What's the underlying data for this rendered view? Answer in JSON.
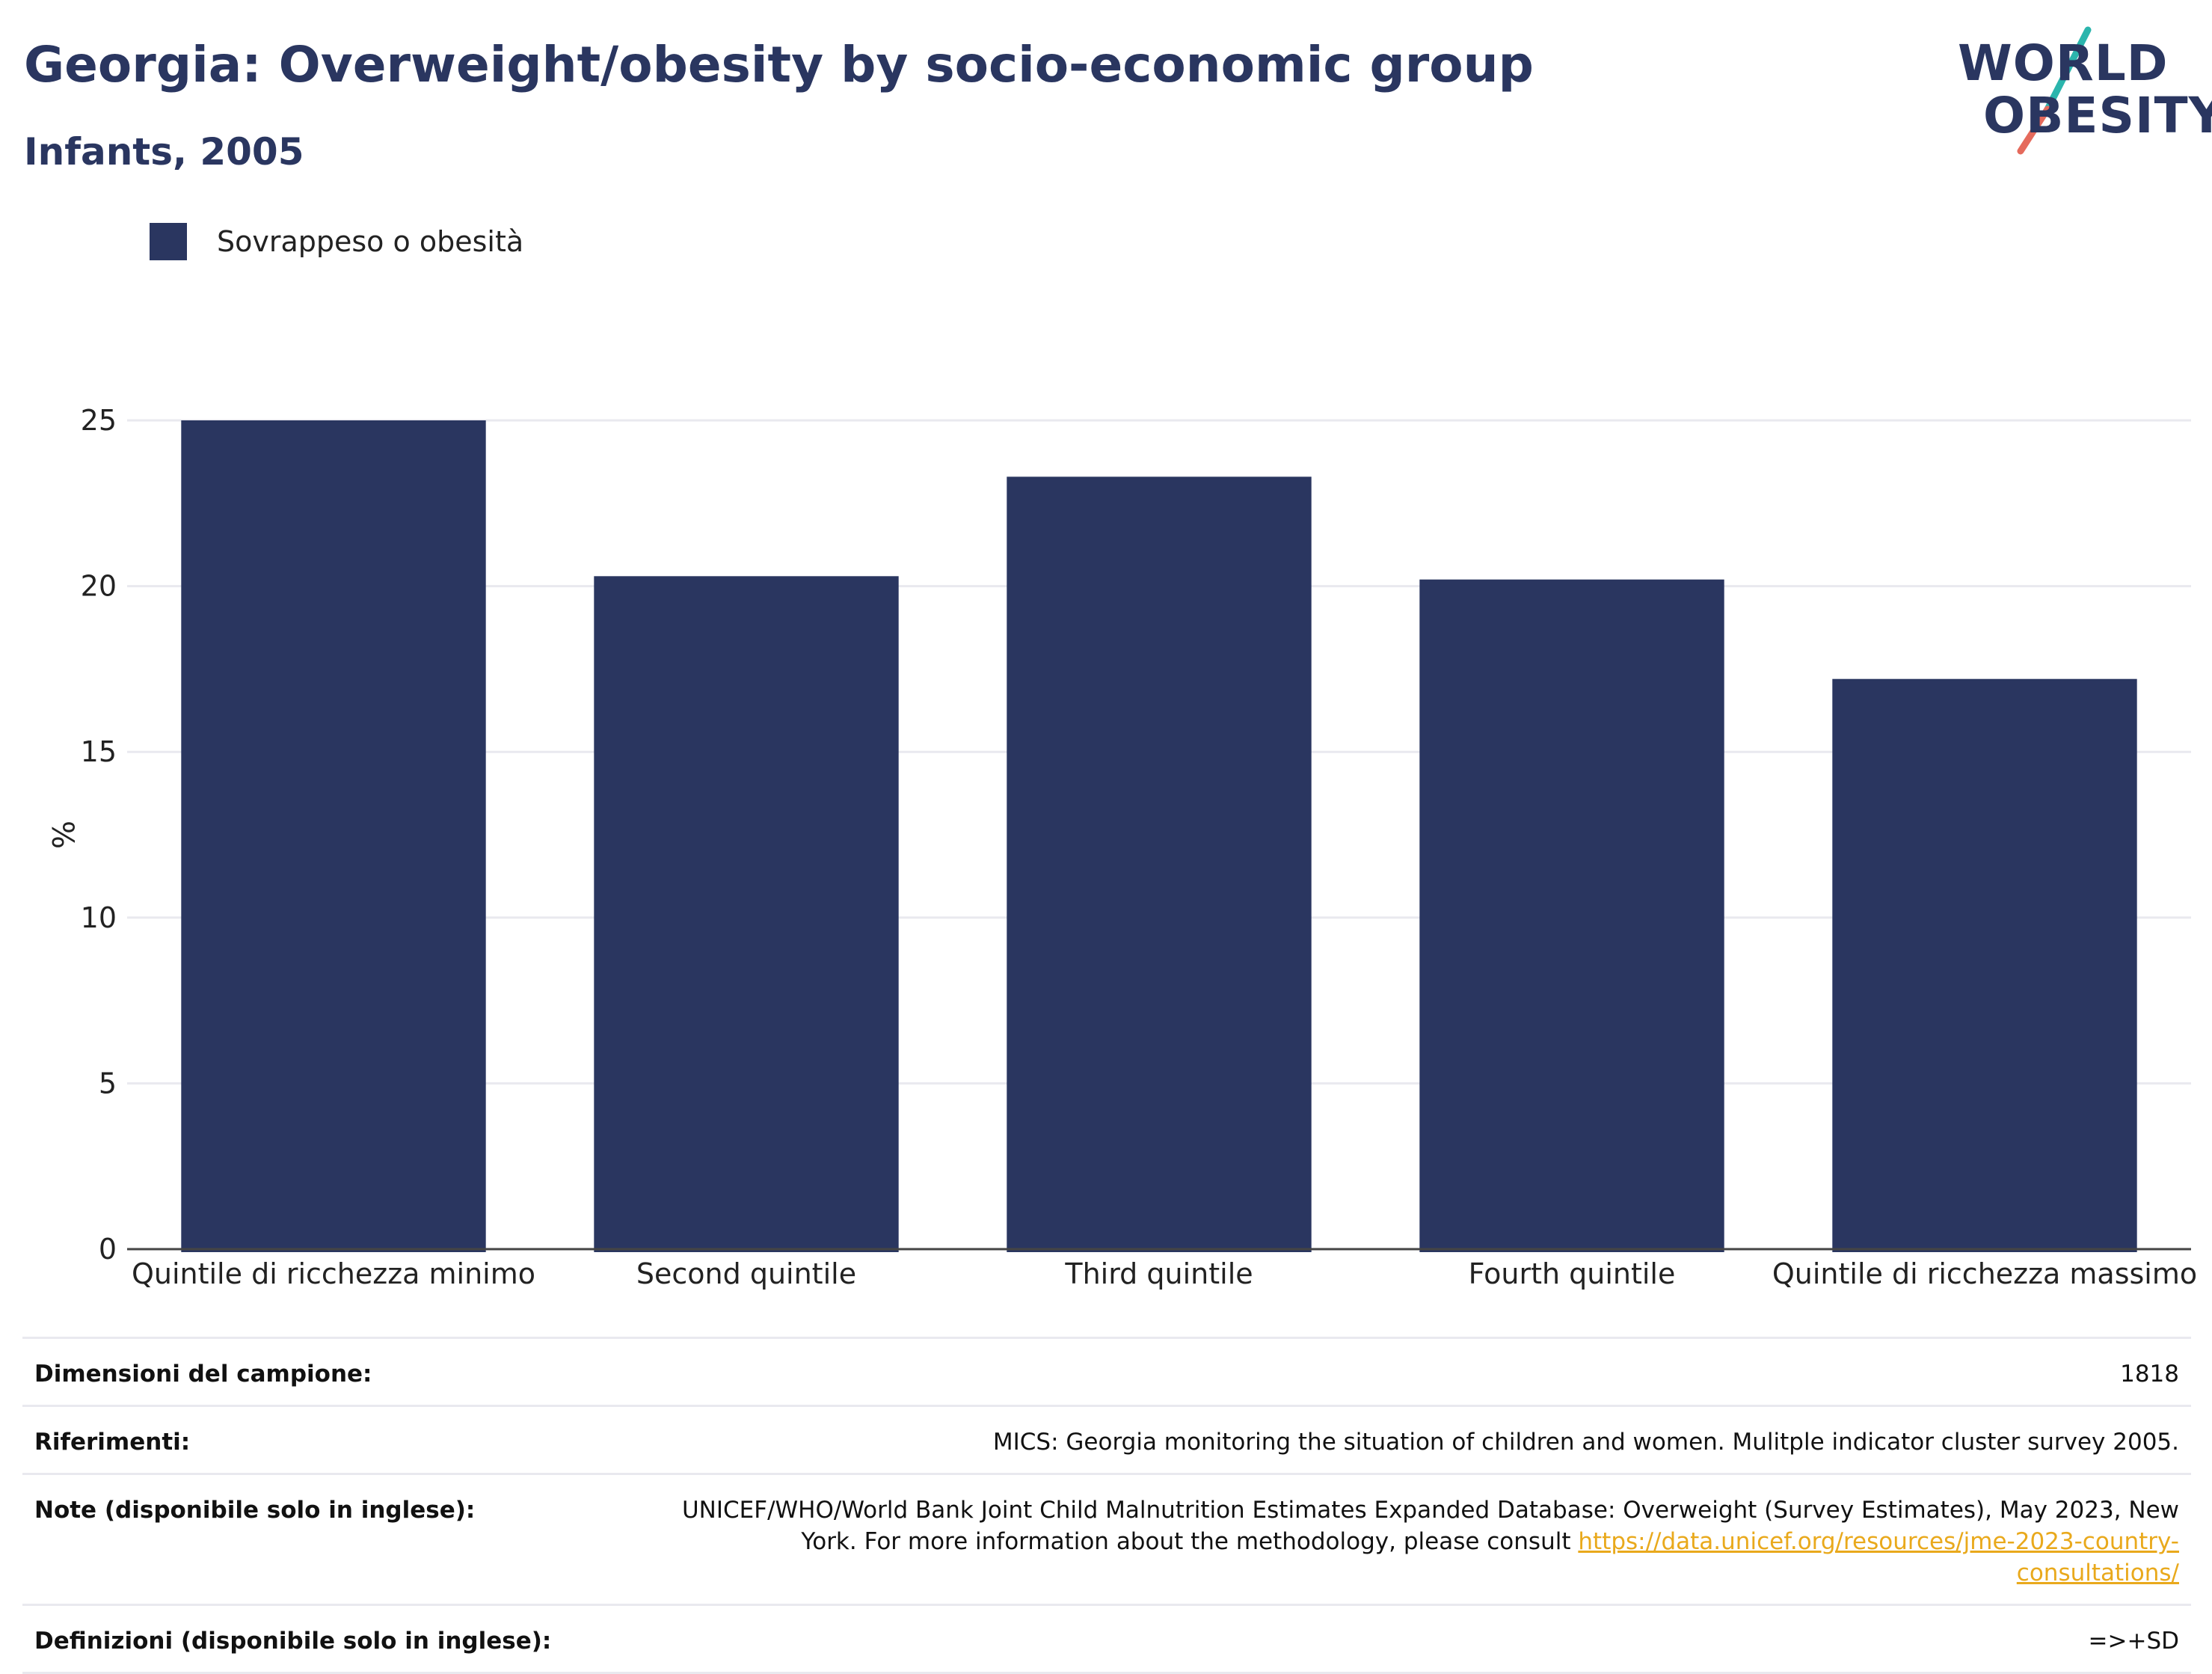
{
  "header": {
    "title": "Georgia: Overweight/obesity by socio-economic group",
    "subtitle": "Infants, 2005"
  },
  "logo": {
    "line1": "WORLD",
    "line2": "OBESITY",
    "accent_colors": [
      "#2bb5ad",
      "#e56a5c"
    ]
  },
  "colors": {
    "bar": "#2a3660",
    "gridline": "#e9e9ef",
    "axis": "#444444"
  },
  "chart_data": {
    "type": "bar",
    "categories": [
      "Quintile di ricchezza minimo",
      "Second quintile",
      "Third quintile",
      "Fourth quintile",
      "Quintile di ricchezza massimo"
    ],
    "series": [
      {
        "name": "Sovrappeso o obesità",
        "values": [
          25.0,
          20.3,
          23.3,
          20.2,
          17.2
        ]
      }
    ],
    "ylabel": "%",
    "xlabel": "",
    "ylim": [
      0,
      25
    ],
    "yticks": [
      0,
      5,
      10,
      15,
      20,
      25
    ],
    "grid": true,
    "legend_position": "top-left"
  },
  "info": {
    "rows": [
      {
        "label": "Dimensioni del campione:",
        "value": "1818"
      },
      {
        "label": "Riferimenti:",
        "value": "MICS: Georgia monitoring the situation of children and women. Mulitple indicator cluster survey 2005."
      },
      {
        "label": "Note (disponibile solo in inglese):",
        "value": "UNICEF/WHO/World Bank Joint Child Malnutrition Estimates Expanded Database: Overweight (Survey Estimates), May 2023, New York. For more information about the methodology, please consult",
        "link": "https://data.unicef.org/resources/jme-2023-country-consultations/"
      },
      {
        "label": "Definizioni (disponibile solo in inglese):",
        "value": "=>+SD"
      }
    ]
  }
}
